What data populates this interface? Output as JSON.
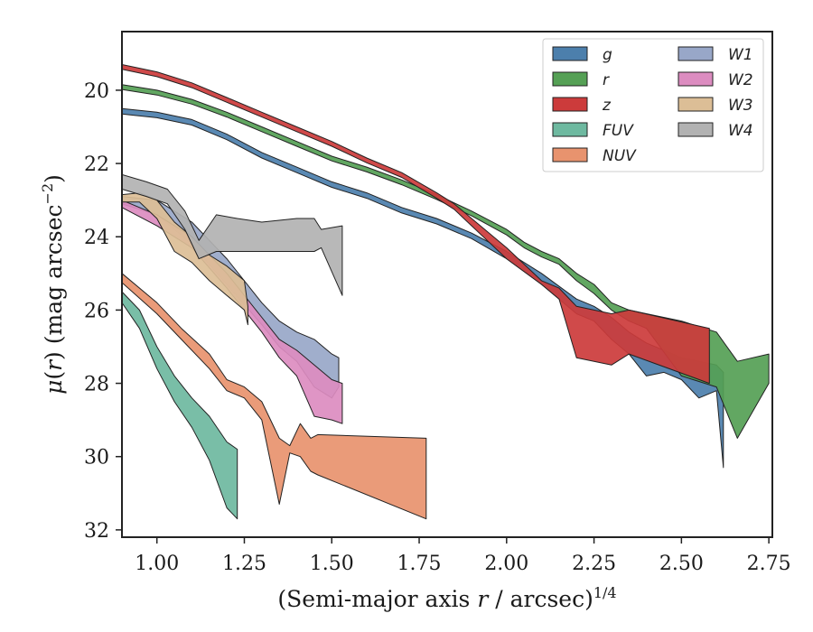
{
  "chart_data": {
    "type": "area",
    "title": "",
    "xlabel": "(Semi-major axis r / arcsec)^1/4",
    "ylabel": "μ(r) (mag arcsec^−2)",
    "xlim": [
      0.9,
      2.76
    ],
    "ylim": [
      32.2,
      18.4
    ],
    "y_inverted": true,
    "grid": false,
    "legend_placement": "top-right",
    "legend_columns": 2,
    "x_ticks": [
      "1.00",
      "1.25",
      "1.50",
      "1.75",
      "2.00",
      "2.25",
      "2.50",
      "2.75"
    ],
    "x_tick_values": [
      1.0,
      1.25,
      1.5,
      1.75,
      2.0,
      2.25,
      2.5,
      2.75
    ],
    "y_ticks": [
      "20",
      "22",
      "24",
      "26",
      "28",
      "30",
      "32"
    ],
    "y_tick_values": [
      20,
      22,
      24,
      26,
      28,
      30,
      32
    ],
    "series": [
      {
        "name": "g",
        "color": "#4c7fac",
        "x": [
          0.9,
          1.0,
          1.1,
          1.2,
          1.3,
          1.4,
          1.5,
          1.6,
          1.7,
          1.8,
          1.9,
          2.0,
          2.1,
          2.2,
          2.25,
          2.3,
          2.35,
          2.4,
          2.45,
          2.5,
          2.55,
          2.6,
          2.62
        ],
        "lower": [
          20.5,
          20.6,
          20.8,
          21.2,
          21.7,
          22.1,
          22.5,
          22.8,
          23.2,
          23.5,
          23.9,
          24.4,
          25.0,
          25.7,
          25.9,
          26.2,
          26.6,
          26.9,
          27.1,
          27.3,
          27.4,
          27.5,
          27.7
        ],
        "upper": [
          20.65,
          20.75,
          20.95,
          21.35,
          21.85,
          22.25,
          22.65,
          22.95,
          23.35,
          23.65,
          24.05,
          24.6,
          25.3,
          26.1,
          26.3,
          26.8,
          27.2,
          27.8,
          27.7,
          27.9,
          28.4,
          28.2,
          30.3
        ]
      },
      {
        "name": "r",
        "color": "#55a055",
        "x": [
          0.9,
          1.0,
          1.1,
          1.2,
          1.3,
          1.4,
          1.5,
          1.6,
          1.7,
          1.8,
          1.9,
          2.0,
          2.05,
          2.1,
          2.15,
          2.2,
          2.25,
          2.3,
          2.35,
          2.4,
          2.5,
          2.6,
          2.66,
          2.75
        ],
        "lower": [
          19.85,
          20.0,
          20.25,
          20.6,
          21.0,
          21.4,
          21.8,
          22.1,
          22.45,
          22.85,
          23.3,
          23.8,
          24.15,
          24.4,
          24.6,
          25.0,
          25.3,
          25.8,
          26.0,
          26.1,
          26.3,
          26.6,
          27.4,
          27.2
        ],
        "upper": [
          19.98,
          20.13,
          20.38,
          20.73,
          21.13,
          21.53,
          21.93,
          22.23,
          22.58,
          22.98,
          23.43,
          23.95,
          24.3,
          24.55,
          24.75,
          25.2,
          25.55,
          26.0,
          26.3,
          26.5,
          27.8,
          28.1,
          29.5,
          28.0
        ]
      },
      {
        "name": "z",
        "color": "#cc3b3b",
        "x": [
          0.9,
          1.0,
          1.1,
          1.2,
          1.3,
          1.4,
          1.5,
          1.6,
          1.7,
          1.8,
          1.85,
          1.9,
          2.0,
          2.1,
          2.15,
          2.2,
          2.3,
          2.35,
          2.58
        ],
        "lower": [
          19.3,
          19.5,
          19.8,
          20.2,
          20.6,
          21.0,
          21.4,
          21.85,
          22.25,
          22.8,
          23.1,
          23.5,
          24.3,
          25.2,
          25.4,
          25.9,
          26.1,
          26.0,
          26.5
        ],
        "upper": [
          19.43,
          19.63,
          19.93,
          20.33,
          20.73,
          21.13,
          21.53,
          21.98,
          22.38,
          22.95,
          23.25,
          23.7,
          24.6,
          25.3,
          25.7,
          27.3,
          27.5,
          27.2,
          28.0
        ]
      },
      {
        "name": "FUV",
        "color": "#6eb9a0",
        "x": [
          0.9,
          0.95,
          1.0,
          1.05,
          1.1,
          1.15,
          1.2,
          1.23
        ],
        "lower": [
          25.5,
          26.0,
          27.0,
          27.8,
          28.4,
          28.9,
          29.6,
          29.8
        ],
        "upper": [
          25.8,
          26.5,
          27.6,
          28.5,
          29.2,
          30.1,
          31.4,
          31.7
        ]
      },
      {
        "name": "NUV",
        "color": "#e8936e",
        "x": [
          0.9,
          1.0,
          1.07,
          1.15,
          1.2,
          1.25,
          1.3,
          1.35,
          1.38,
          1.41,
          1.44,
          1.46,
          1.77
        ],
        "lower": [
          25.0,
          25.8,
          26.5,
          27.2,
          27.9,
          28.1,
          28.5,
          29.5,
          29.7,
          29.1,
          29.5,
          29.4,
          29.5
        ],
        "upper": [
          25.25,
          26.1,
          26.8,
          27.6,
          28.2,
          28.4,
          29.0,
          31.3,
          29.9,
          30.0,
          30.4,
          30.5,
          31.7
        ]
      },
      {
        "name": "W1",
        "color": "#98a7c8",
        "x": [
          0.9,
          1.0,
          1.1,
          1.2,
          1.3,
          1.35,
          1.4,
          1.45,
          1.5,
          1.52
        ],
        "lower": [
          22.9,
          23.0,
          23.6,
          24.6,
          25.8,
          26.3,
          26.6,
          26.8,
          27.2,
          27.3
        ],
        "upper": [
          23.1,
          23.4,
          24.2,
          25.3,
          26.4,
          27.0,
          27.4,
          28.1,
          28.4,
          28.1
        ]
      },
      {
        "name": "W2",
        "color": "#dc8cc0",
        "x": [
          0.9,
          1.0,
          1.1,
          1.2,
          1.3,
          1.35,
          1.4,
          1.45,
          1.5,
          1.53
        ],
        "lower": [
          23.0,
          23.4,
          24.0,
          25.0,
          26.2,
          26.8,
          27.1,
          27.5,
          27.9,
          28.0
        ],
        "upper": [
          23.2,
          23.7,
          24.3,
          25.4,
          26.6,
          27.3,
          27.8,
          28.9,
          29.0,
          29.1
        ]
      },
      {
        "name": "W3",
        "color": "#dcbe96",
        "x": [
          0.9,
          0.95,
          1.0,
          1.05,
          1.1,
          1.15,
          1.2,
          1.25,
          1.26
        ],
        "lower": [
          22.85,
          22.8,
          23.0,
          23.6,
          24.0,
          24.5,
          24.8,
          25.2,
          25.9
        ],
        "upper": [
          23.05,
          23.05,
          23.5,
          24.4,
          24.7,
          25.2,
          25.6,
          26.0,
          26.4
        ]
      },
      {
        "name": "W4",
        "color": "#b2b2b2",
        "x": [
          0.9,
          0.97,
          1.03,
          1.08,
          1.12,
          1.17,
          1.23,
          1.3,
          1.4,
          1.45,
          1.47,
          1.53
        ],
        "lower": [
          22.3,
          22.5,
          22.7,
          23.3,
          24.1,
          23.4,
          23.5,
          23.6,
          23.5,
          23.5,
          23.8,
          23.7
        ],
        "upper": [
          22.7,
          22.9,
          23.1,
          23.8,
          24.6,
          24.4,
          24.4,
          24.4,
          24.4,
          24.4,
          24.3,
          25.6
        ]
      }
    ]
  }
}
